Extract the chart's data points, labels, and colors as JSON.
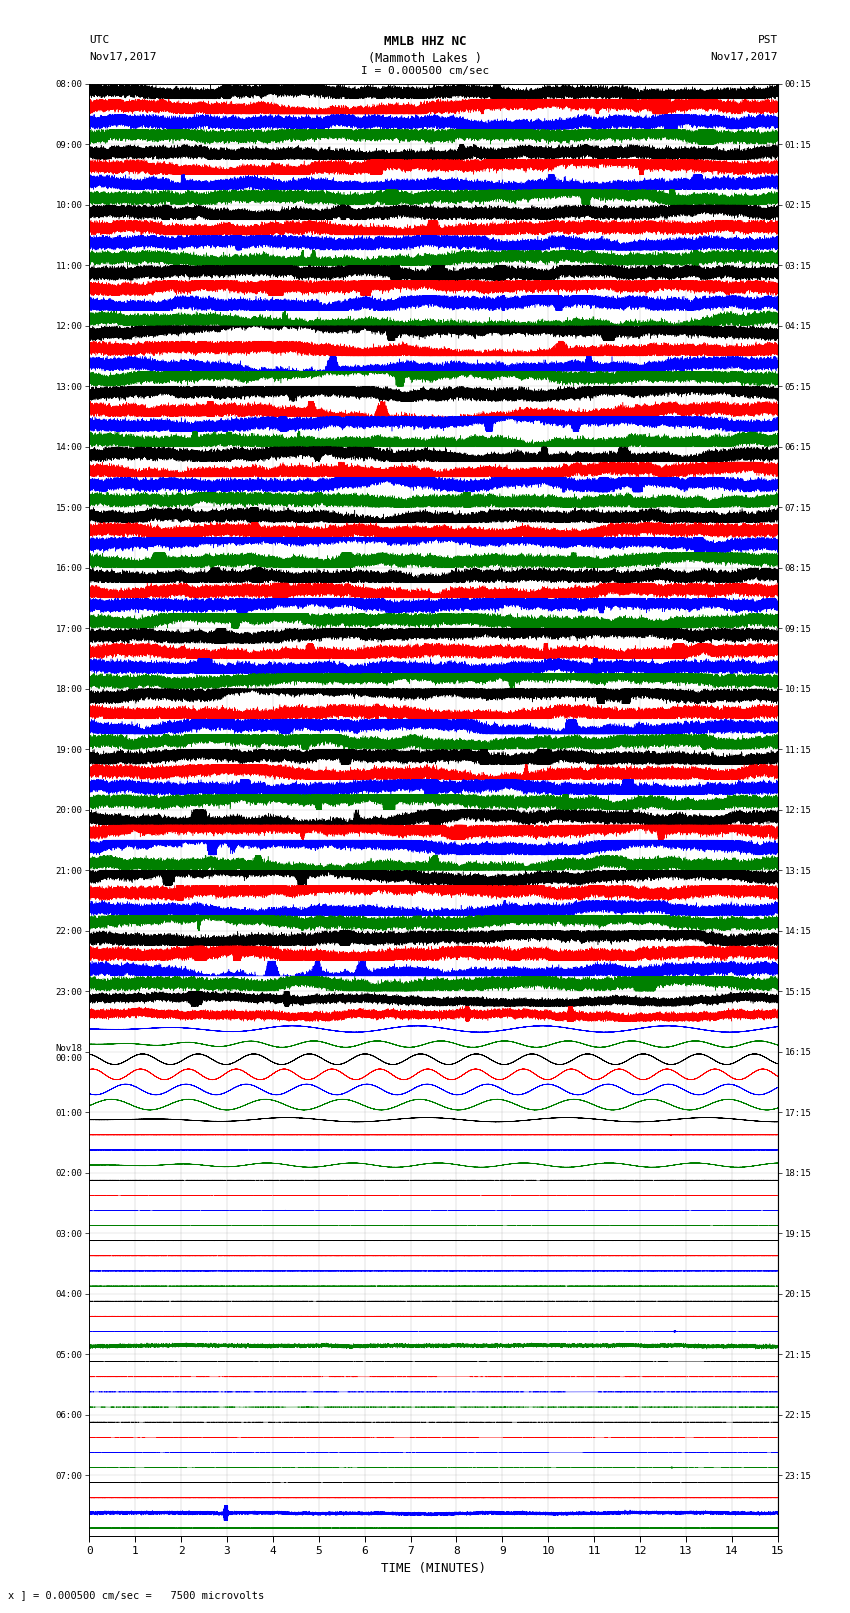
{
  "title_line1": "MMLB HHZ NC",
  "title_line2": "(Mammoth Lakes )",
  "title_line3": "I = 0.000500 cm/sec",
  "left_label_top": "UTC",
  "left_label_date": "Nov17,2017",
  "right_label_top": "PST",
  "right_label_date": "Nov17,2017",
  "xlabel": "TIME (MINUTES)",
  "bottom_note": "x ] = 0.000500 cm/sec =   7500 microvolts",
  "utc_labels": [
    "08:00",
    "09:00",
    "10:00",
    "11:00",
    "12:00",
    "13:00",
    "14:00",
    "15:00",
    "16:00",
    "17:00",
    "18:00",
    "19:00",
    "20:00",
    "21:00",
    "22:00",
    "23:00",
    "Nov18\n00:00",
    "01:00",
    "02:00",
    "03:00",
    "04:00",
    "05:00",
    "06:00",
    "07:00"
  ],
  "pst_labels": [
    "00:15",
    "01:15",
    "02:15",
    "03:15",
    "04:15",
    "05:15",
    "06:15",
    "07:15",
    "08:15",
    "09:15",
    "10:15",
    "11:15",
    "12:15",
    "13:15",
    "14:15",
    "15:15",
    "16:15",
    "17:15",
    "18:15",
    "19:15",
    "20:15",
    "21:15",
    "22:15",
    "23:15"
  ],
  "n_rows": 24,
  "traces_per_row": 4,
  "colors": [
    "black",
    "red",
    "blue",
    "green"
  ],
  "minutes": 15,
  "sample_rate": 100,
  "background_color": "white",
  "amplitude_active": 0.38,
  "amplitude_quiet": 0.06,
  "linewidth": 0.35
}
